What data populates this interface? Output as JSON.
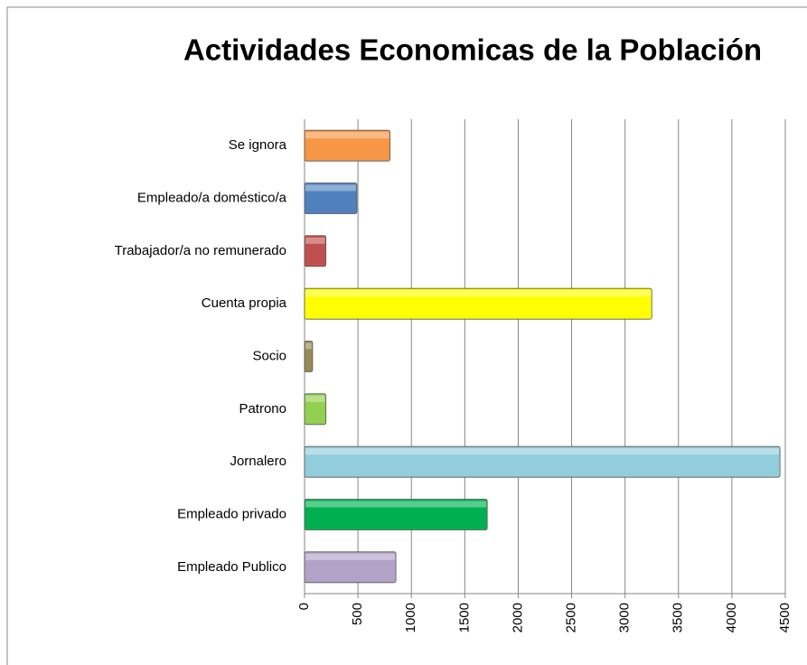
{
  "chart_data": {
    "type": "bar",
    "orientation": "horizontal",
    "title": "Actividades Economicas de la Población",
    "categories": [
      "Se ignora",
      "Empleado/a doméstico/a",
      "Trabajador/a no remunerado",
      "Cuenta propia",
      "Socio",
      "Patrono",
      "Jornalero",
      "Empleado privado",
      "Empleado Publico"
    ],
    "values": [
      800,
      490,
      200,
      3250,
      75,
      200,
      4450,
      1710,
      855
    ],
    "colors": [
      "#f79646",
      "#4f81bd",
      "#c0504d",
      "#ffff00",
      "#948a54",
      "#92d050",
      "#92cddc",
      "#00b050",
      "#b3a2c7"
    ],
    "xlim": [
      0,
      4500
    ],
    "xticks": [
      0,
      500,
      1000,
      1500,
      2000,
      2500,
      3000,
      3500,
      4000,
      4500
    ],
    "grid": true
  }
}
